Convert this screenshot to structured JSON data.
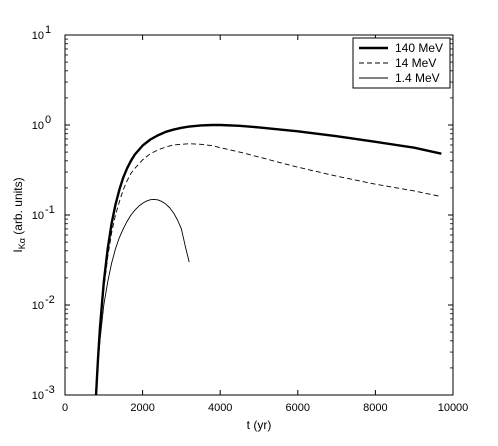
{
  "chart_data": {
    "type": "line",
    "xlabel": "t (yr)",
    "ylabel_main": "I",
    "ylabel_sub": "Kα",
    "ylabel_rest": " (arb. units)",
    "xlim": [
      0,
      10000
    ],
    "ylim": [
      0.001,
      10
    ],
    "yscale": "log",
    "grid": false,
    "legend_position": "top-right",
    "x_ticks": [
      0,
      2000,
      4000,
      6000,
      8000,
      10000
    ],
    "x_tick_labels": [
      "0",
      "2000",
      "4000",
      "6000",
      "8000",
      "10000"
    ],
    "y_ticks": [
      {
        "value": 0.001,
        "base": "10",
        "exp": "-3"
      },
      {
        "value": 0.01,
        "base": "10",
        "exp": "-2"
      },
      {
        "value": 0.1,
        "base": "10",
        "exp": "-1"
      },
      {
        "value": 1,
        "base": "10",
        "exp": "0"
      },
      {
        "value": 10,
        "base": "10",
        "exp": "1"
      }
    ],
    "series": [
      {
        "name": "140 MeV",
        "style": "solid-thick",
        "color": "#000000",
        "x": [
          800,
          850,
          900,
          1000,
          1100,
          1200,
          1300,
          1400,
          1500,
          1600,
          1700,
          1800,
          2000,
          2200,
          2400,
          2600,
          2800,
          3000,
          3200,
          3500,
          3800,
          4000,
          4500,
          5000,
          6000,
          7000,
          8000,
          9000,
          9700
        ],
        "y": [
          0.001,
          0.0025,
          0.0055,
          0.018,
          0.042,
          0.08,
          0.13,
          0.19,
          0.26,
          0.33,
          0.4,
          0.47,
          0.59,
          0.69,
          0.77,
          0.84,
          0.89,
          0.93,
          0.96,
          0.99,
          1.0,
          1.0,
          0.98,
          0.94,
          0.85,
          0.75,
          0.65,
          0.56,
          0.48
        ]
      },
      {
        "name": "14 MeV",
        "style": "dashed",
        "color": "#000000",
        "x": [
          800,
          850,
          900,
          1000,
          1100,
          1200,
          1300,
          1400,
          1500,
          1600,
          1700,
          1800,
          2000,
          2200,
          2400,
          2600,
          2800,
          3000,
          3200,
          3500,
          3800,
          4000,
          4500,
          5000,
          6000,
          7000,
          8000,
          9000,
          9700
        ],
        "y": [
          0.001,
          0.0024,
          0.005,
          0.015,
          0.034,
          0.063,
          0.1,
          0.14,
          0.19,
          0.24,
          0.29,
          0.33,
          0.41,
          0.48,
          0.53,
          0.57,
          0.6,
          0.61,
          0.62,
          0.61,
          0.59,
          0.56,
          0.5,
          0.44,
          0.34,
          0.27,
          0.22,
          0.185,
          0.16
        ]
      },
      {
        "name": "1.4 MeV",
        "style": "solid-thin",
        "color": "#000000",
        "x": [
          800,
          850,
          900,
          1000,
          1100,
          1200,
          1300,
          1400,
          1500,
          1600,
          1700,
          1800,
          1900,
          2000,
          2100,
          2200,
          2300,
          2400,
          2500,
          2600,
          2700,
          2800,
          2900,
          3000,
          3100,
          3200
        ],
        "y": [
          0.001,
          0.0022,
          0.004,
          0.01,
          0.018,
          0.029,
          0.042,
          0.056,
          0.07,
          0.085,
          0.1,
          0.113,
          0.125,
          0.135,
          0.143,
          0.148,
          0.149,
          0.147,
          0.141,
          0.132,
          0.12,
          0.105,
          0.088,
          0.07,
          0.045,
          0.03
        ]
      }
    ]
  }
}
